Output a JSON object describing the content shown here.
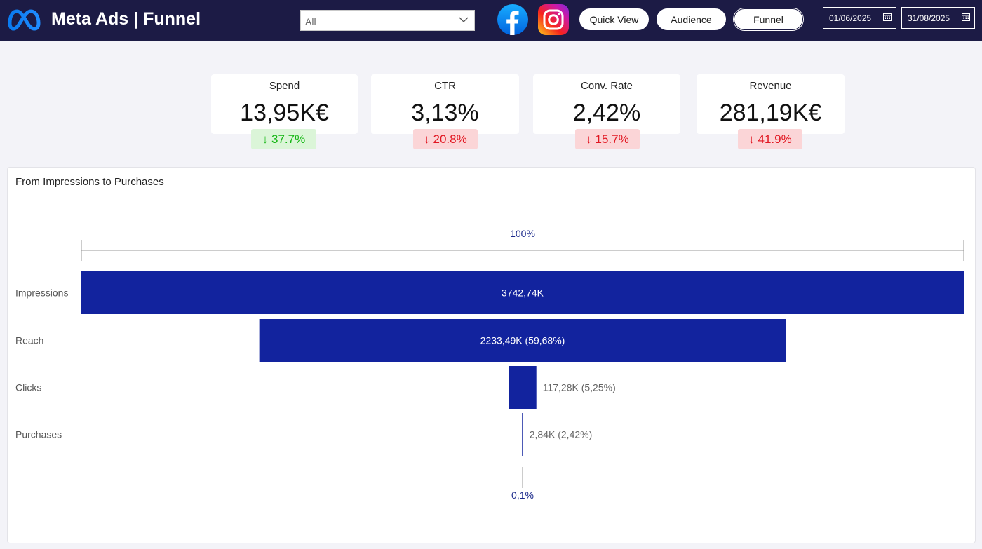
{
  "header": {
    "title": "Meta Ads | Funnel",
    "filter": {
      "selected": "All"
    },
    "buttons": {
      "quick_view": "Quick View",
      "audience": "Audience",
      "funnel": "Funnel"
    },
    "date_start": "01/06/2025",
    "date_end": "31/08/2025",
    "icons": {
      "logo": "meta-logo",
      "facebook": "facebook-icon",
      "instagram": "instagram-icon"
    }
  },
  "kpis": [
    {
      "label": "Spend",
      "value": "13,95K€",
      "change": "↓ 37.7%",
      "status": "good"
    },
    {
      "label": "CTR",
      "value": "3,13%",
      "change": "↓ 20.8%",
      "status": "bad"
    },
    {
      "label": "Conv. Rate",
      "value": "2,42%",
      "change": "↓ 15.7%",
      "status": "bad"
    },
    {
      "label": "Revenue",
      "value": "281,19K€",
      "change": "↓ 41.9%",
      "status": "bad"
    }
  ],
  "colors": {
    "header_bg": "#1c1b45",
    "bar": "#12239e",
    "good": "#11b511",
    "bad": "#e11722"
  },
  "chart_data": {
    "type": "funnel",
    "title": "From Impressions to Purchases",
    "top_percentage_label": "100%",
    "bottom_percentage_label": "0,1%",
    "stages": [
      {
        "label": "Impressions",
        "value": 3742.74,
        "value_label": "3742,74K"
      },
      {
        "label": "Reach",
        "value": 2233.49,
        "value_label": "2233,49K (59,68%)"
      },
      {
        "label": "Clicks",
        "value": 117.28,
        "value_label": "117,28K (5,25%)"
      },
      {
        "label": "Purchases",
        "value": 2.84,
        "value_label": "2,84K (2,42%)"
      }
    ]
  }
}
